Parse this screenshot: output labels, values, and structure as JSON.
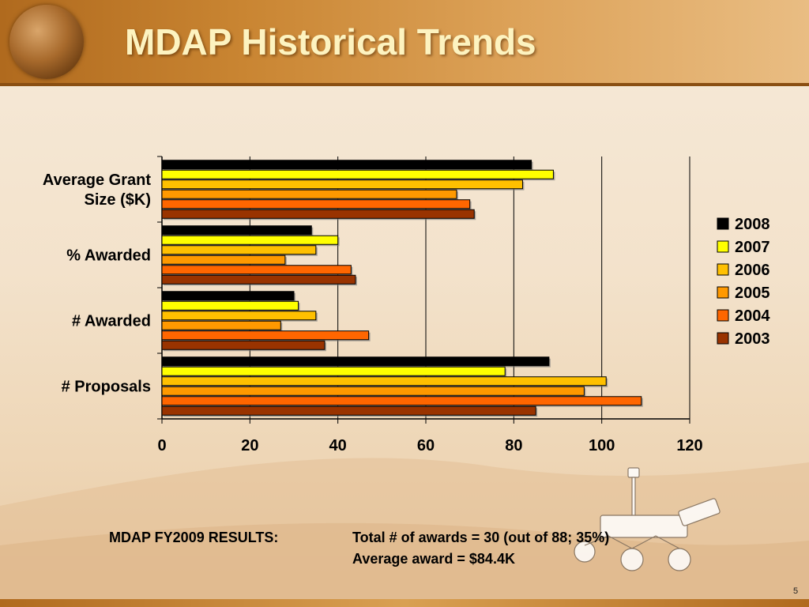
{
  "slide": {
    "title": "MDAP Historical Trends",
    "page_number": "5"
  },
  "results": {
    "label": "MDAP FY2009 RESULTS:",
    "line1": "Total # of awards = 30 (out of 88; 35%)",
    "line2": "Average award = $84.4K"
  },
  "colors": {
    "2008": "#000000",
    "2007": "#ffff00",
    "2006": "#ffc000",
    "2005": "#ff9900",
    "2004": "#ff6600",
    "2003": "#993300"
  },
  "chart_data": {
    "type": "bar",
    "orientation": "horizontal",
    "categories": [
      "Average Grant Size ($K)",
      "% Awarded",
      "# Awarded",
      "# Proposals"
    ],
    "category_label_lines": [
      [
        "Average Grant",
        "Size  ($K)"
      ],
      [
        "% Awarded"
      ],
      [
        "# Awarded"
      ],
      [
        "# Proposals"
      ]
    ],
    "series": [
      {
        "name": "2008",
        "values": [
          84,
          34,
          30,
          88
        ]
      },
      {
        "name": "2007",
        "values": [
          89,
          40,
          31,
          78
        ]
      },
      {
        "name": "2006",
        "values": [
          82,
          35,
          35,
          101
        ]
      },
      {
        "name": "2005",
        "values": [
          67,
          28,
          27,
          96
        ]
      },
      {
        "name": "2004",
        "values": [
          70,
          43,
          47,
          109
        ]
      },
      {
        "name": "2003",
        "values": [
          71,
          44,
          37,
          85
        ]
      }
    ],
    "xlim": [
      0,
      120
    ],
    "xticks": [
      "0",
      "20",
      "40",
      "60",
      "80",
      "100",
      "120"
    ],
    "grid": true,
    "legend_position": "right"
  }
}
